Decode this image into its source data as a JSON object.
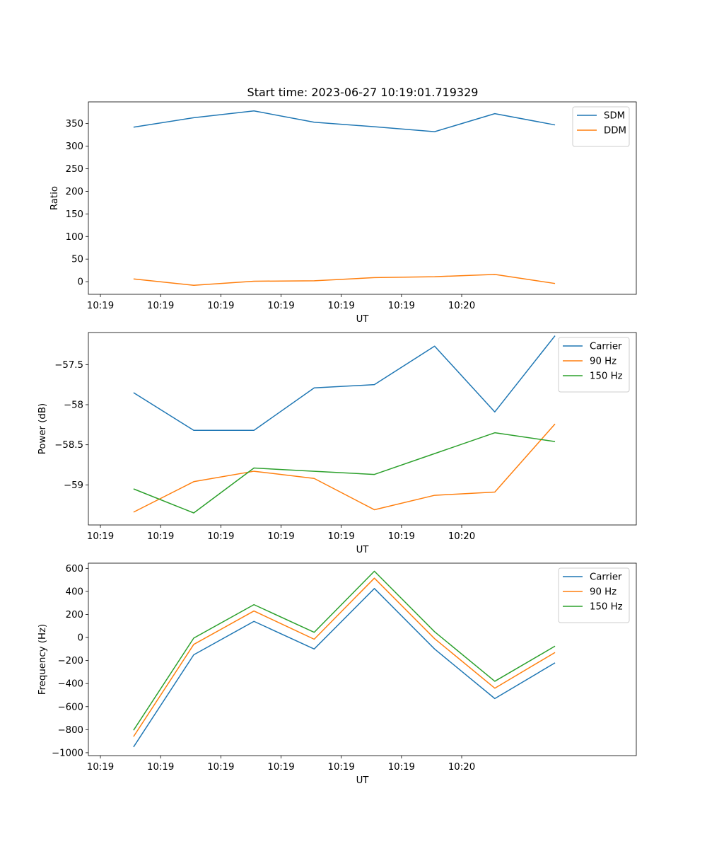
{
  "figure": {
    "title": "Start time: 2023-06-27 10:19:01.719329"
  },
  "chart_data": [
    {
      "type": "line",
      "title": "Start time: 2023-06-27 10:19:01.719329",
      "xlabel": "UT",
      "ylabel": "Ratio",
      "x_tick_labels": [
        "10:19",
        "10:19",
        "10:19",
        "10:19",
        "10:19",
        "10:19",
        "10:20"
      ],
      "xlim": [
        -0.2,
        8.9
      ],
      "x": [
        0.55,
        1.55,
        2.55,
        3.55,
        4.55,
        5.55,
        6.55,
        7.55
      ],
      "ylim": [
        -28,
        398
      ],
      "yticks": [
        0,
        50,
        100,
        150,
        200,
        250,
        300,
        350
      ],
      "grid": false,
      "legend": "upper right",
      "series": [
        {
          "name": "SDM",
          "color": "#1f77b4",
          "values": [
            342,
            363,
            378,
            353,
            343,
            332,
            372,
            347
          ]
        },
        {
          "name": "DDM",
          "color": "#ff7f0e",
          "values": [
            6,
            -8,
            1,
            2,
            9,
            11,
            16,
            -4
          ]
        }
      ]
    },
    {
      "type": "line",
      "title": "",
      "xlabel": "UT",
      "ylabel": "Power (dB)",
      "x_tick_labels": [
        "10:19",
        "10:19",
        "10:19",
        "10:19",
        "10:19",
        "10:19",
        "10:20"
      ],
      "xlim": [
        -0.2,
        8.9
      ],
      "x": [
        0.55,
        1.55,
        2.55,
        3.55,
        4.55,
        5.55,
        6.55,
        7.55
      ],
      "ylim": [
        -59.5,
        -57.1
      ],
      "yticks": [
        -59.0,
        -58.5,
        -58.0,
        -57.5
      ],
      "grid": false,
      "legend": "upper right",
      "series": [
        {
          "name": "Carrier",
          "color": "#1f77b4",
          "values": [
            -57.85,
            -58.32,
            -58.32,
            -57.79,
            -57.75,
            -57.27,
            -58.09,
            -57.14
          ]
        },
        {
          "name": "90 Hz",
          "color": "#ff7f0e",
          "values": [
            -59.34,
            -58.96,
            -58.83,
            -58.92,
            -59.31,
            -59.13,
            -59.09,
            -58.24
          ]
        },
        {
          "name": "150 Hz",
          "color": "#2ca02c",
          "values": [
            -59.05,
            -59.35,
            -58.79,
            -58.83,
            -58.87,
            -58.61,
            -58.35,
            -58.46
          ]
        }
      ]
    },
    {
      "type": "line",
      "title": "",
      "xlabel": "UT",
      "ylabel": "Frequency (Hz)",
      "x_tick_labels": [
        "10:19",
        "10:19",
        "10:19",
        "10:19",
        "10:19",
        "10:19",
        "10:20"
      ],
      "xlim": [
        -0.2,
        8.9
      ],
      "x": [
        0.55,
        1.55,
        2.55,
        3.55,
        4.55,
        5.55,
        6.55,
        7.55
      ],
      "ylim": [
        -1025,
        645
      ],
      "yticks": [
        -1000,
        -800,
        -600,
        -400,
        -200,
        0,
        200,
        400,
        600
      ],
      "grid": false,
      "legend": "upper right",
      "series": [
        {
          "name": "Carrier",
          "color": "#1f77b4",
          "values": [
            -950,
            -150,
            140,
            -100,
            425,
            -100,
            -530,
            -220
          ]
        },
        {
          "name": "90 Hz",
          "color": "#ff7f0e",
          "values": [
            -860,
            -60,
            230,
            -15,
            515,
            -10,
            -440,
            -130
          ]
        },
        {
          "name": "150 Hz",
          "color": "#2ca02c",
          "values": [
            -805,
            -5,
            285,
            45,
            575,
            50,
            -380,
            -75
          ]
        }
      ]
    }
  ]
}
